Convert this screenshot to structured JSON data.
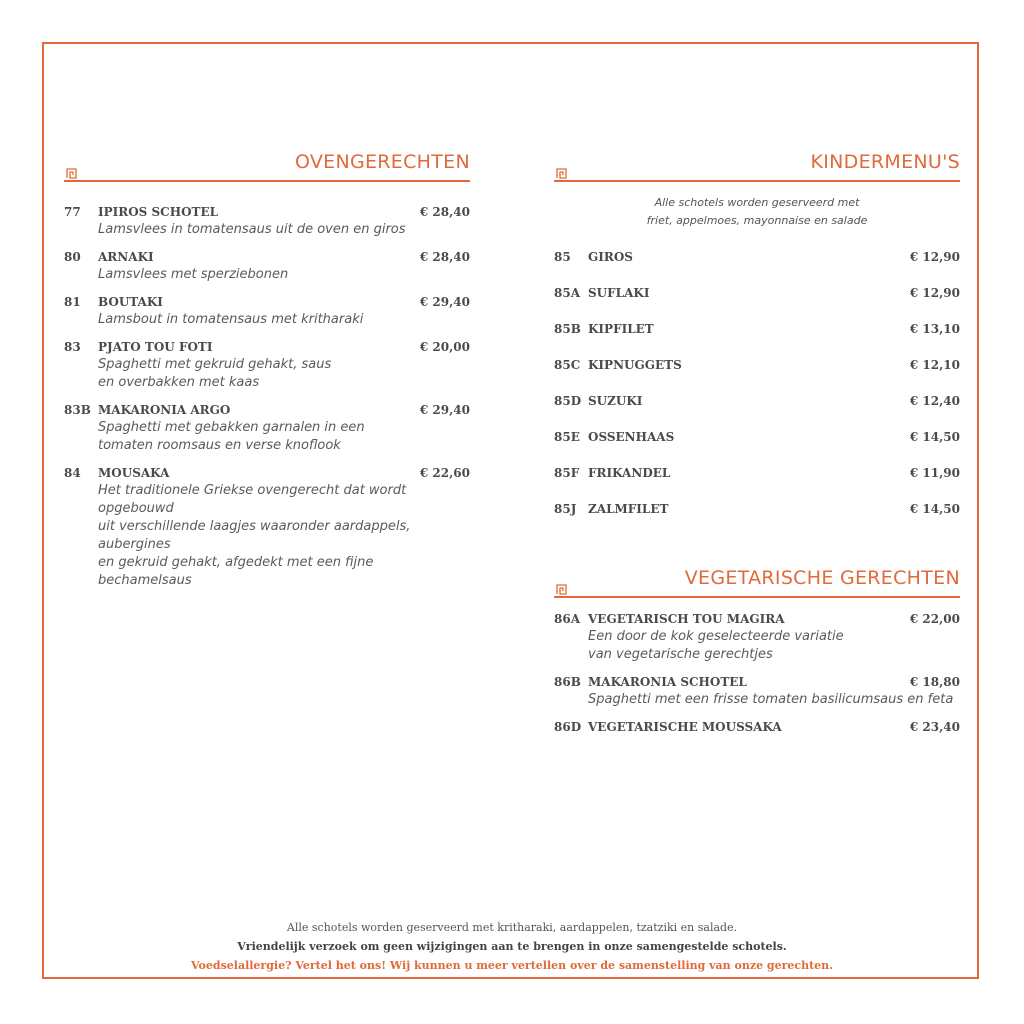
{
  "colors": {
    "accent": "#e06a3a",
    "text": "#4a4a4a"
  },
  "ovengerechten": {
    "title": "OVENGERECHTEN",
    "icon": "greek-meander-icon",
    "items": [
      {
        "num": "77",
        "name": "IPIROS SCHOTEL",
        "price": "€ 28,40",
        "desc": [
          "Lamsvlees in tomatensaus uit de oven en giros"
        ]
      },
      {
        "num": "80",
        "name": "ARNAKI",
        "price": "€ 28,40",
        "desc": [
          "Lamsvlees met sperziebonen"
        ]
      },
      {
        "num": "81",
        "name": "BOUTAKI",
        "price": "€ 29,40",
        "desc": [
          "Lamsbout in tomatensaus met kritharaki"
        ]
      },
      {
        "num": "83",
        "name": "PJATO TOU FOTI",
        "price": "€ 20,00",
        "desc": [
          "Spaghetti met gekruid gehakt, saus",
          "en overbakken met kaas"
        ]
      },
      {
        "num": "83B",
        "name": "MAKARONIA ARGO",
        "price": "€ 29,40",
        "desc": [
          "Spaghetti met gebakken garnalen in een",
          "tomaten roomsaus en verse knoflook"
        ]
      },
      {
        "num": "84",
        "name": "MOUSAKA",
        "price": "€ 22,60",
        "desc": [
          "Het traditionele Griekse ovengerecht dat wordt opgebouwd",
          "uit verschillende laagjes waaronder aardappels, aubergines",
          "en gekruid gehakt, afgedekt met een fijne bechamelsaus"
        ]
      }
    ]
  },
  "kindermenus": {
    "title": "KINDERMENU'S",
    "intro": [
      "Alle schotels worden geserveerd met",
      "friet, appelmoes, mayonnaise en salade"
    ],
    "items": [
      {
        "num": "85",
        "name": "GIROS",
        "price": "€ 12,90"
      },
      {
        "num": "85A",
        "name": "SUFLAKI",
        "price": "€ 12,90"
      },
      {
        "num": "85B",
        "name": "KIPFILET",
        "price": "€ 13,10"
      },
      {
        "num": "85C",
        "name": "KIPNUGGETS",
        "price": "€ 12,10"
      },
      {
        "num": "85D",
        "name": "SUZUKI",
        "price": "€ 12,40"
      },
      {
        "num": "85E",
        "name": "OSSENHAAS",
        "price": "€ 14,50"
      },
      {
        "num": "85F",
        "name": "FRIKANDEL",
        "price": "€ 11,90"
      },
      {
        "num": "85J",
        "name": "ZALMFILET",
        "price": "€ 14,50"
      }
    ]
  },
  "vegetarisch": {
    "title": "VEGETARISCHE GERECHTEN",
    "items": [
      {
        "num": "86A",
        "name": "VEGETARISCH TOU MAGIRA",
        "price": "€ 22,00",
        "desc": [
          "Een door de kok geselecteerde variatie",
          "van vegetarische gerechtjes"
        ]
      },
      {
        "num": "86B",
        "name": "MAKARONIA SCHOTEL",
        "price": "€ 18,80",
        "desc": [
          "Spaghetti met een frisse tomaten basilicumsaus en feta"
        ]
      },
      {
        "num": "86D",
        "name": "VEGETARISCHE MOUSSAKA",
        "price": "€ 23,40",
        "desc": []
      }
    ]
  },
  "footer": {
    "line1": "Alle schotels worden geserveerd met kritharaki, aardappelen, tzatziki en salade.",
    "line2": "Vriendelijk verzoek om geen wijzigingen aan te brengen in onze samengestelde schotels.",
    "line3": "Voedselallergie? Vertel het ons! Wij kunnen u meer vertellen over de samenstelling van onze gerechten."
  }
}
